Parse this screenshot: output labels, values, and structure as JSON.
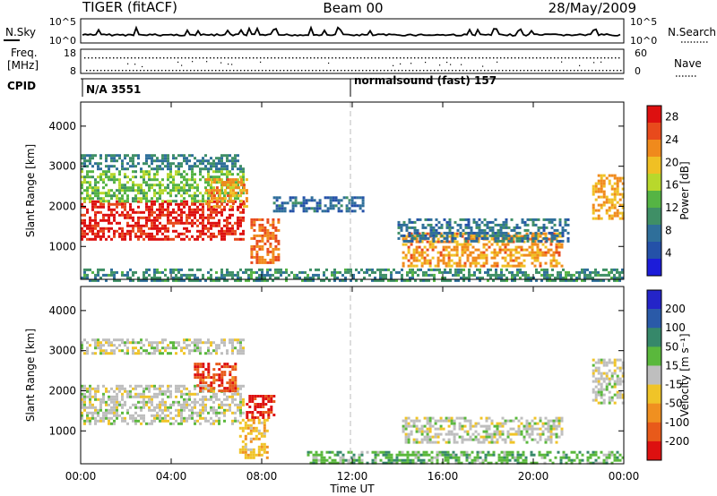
{
  "header": {
    "radar": "TIGER (fitACF)",
    "beam": "Beam 00",
    "date": "28/May/2009"
  },
  "strips": {
    "nsky_label": "N.Sky",
    "nsearch_label": "N.Search",
    "nsky_ticks": [
      "10^5",
      "10^0"
    ],
    "freq_label_1": "Freq.",
    "freq_label_2": "[MHz]",
    "freq_ticks": [
      "18",
      "8"
    ],
    "nave_label": "Nave",
    "nave_ticks": [
      "60",
      "0"
    ],
    "cpid_label": "CPID",
    "cpid_segments": [
      {
        "start_hour": 0,
        "text": "N/A 3551"
      },
      {
        "start_hour": 12,
        "text": "normalsound (fast) 157"
      }
    ]
  },
  "colors": {
    "power_scale": [
      "#1c1cd9",
      "#2451a8",
      "#2f6f9a",
      "#3f8f66",
      "#55b444",
      "#b8d82c",
      "#f0c024",
      "#f08a1c",
      "#e84a1c",
      "#dd1010"
    ],
    "velocity_scale": [
      "#2424c8",
      "#2a5aa8",
      "#36886a",
      "#5ab83c",
      "#bebebe",
      "#f0c428",
      "#f09020",
      "#e85a1a",
      "#dd1010"
    ]
  },
  "chart_data": [
    {
      "type": "heatmap",
      "panel": "power",
      "ylabel": "Slant Range [km]",
      "ylim": [
        180,
        4600
      ],
      "y_ticks": [
        "1000",
        "2000",
        "3000",
        "4000"
      ],
      "x_ticks": [
        "00:00",
        "04:00",
        "08:00",
        "12:00",
        "16:00",
        "20:00",
        "00:00"
      ],
      "xlim_hours": [
        0,
        24
      ],
      "colorbar": {
        "label": "Power [dB]",
        "ticks": [
          "4",
          "8",
          "12",
          "16",
          "20",
          "24",
          "28"
        ],
        "range": [
          0,
          30
        ]
      },
      "echo_regions": [
        {
          "t0": 0.0,
          "t1": 7.2,
          "r0": 1150,
          "r1": 2150,
          "value": 28
        },
        {
          "t0": 0.0,
          "t1": 7.2,
          "r0": 2150,
          "r1": 2900,
          "value": 14
        },
        {
          "t0": 0.0,
          "t1": 7.2,
          "r0": 2900,
          "r1": 3300,
          "value": 9
        },
        {
          "t0": 5.5,
          "t1": 7.3,
          "r0": 2000,
          "r1": 2700,
          "value": 22
        },
        {
          "t0": 7.5,
          "t1": 8.8,
          "r0": 600,
          "r1": 1700,
          "value": 24
        },
        {
          "t0": 8.5,
          "t1": 12.5,
          "r0": 1900,
          "r1": 2250,
          "value": 7
        },
        {
          "t0": 14.2,
          "t1": 21.3,
          "r0": 500,
          "r1": 1350,
          "value": 22
        },
        {
          "t0": 14.0,
          "t1": 21.5,
          "r0": 1100,
          "r1": 1700,
          "value": 8
        },
        {
          "t0": 22.6,
          "t1": 24.0,
          "r0": 1700,
          "r1": 2800,
          "value": 21
        },
        {
          "t0": 0.0,
          "t1": 24.0,
          "r0": 180,
          "r1": 450,
          "value": 10
        }
      ]
    },
    {
      "type": "heatmap",
      "panel": "velocity",
      "ylabel": "Slant Range [km]",
      "ylim": [
        180,
        4600
      ],
      "y_ticks": [
        "1000",
        "2000",
        "3000",
        "4000"
      ],
      "x_ticks": [
        "00:00",
        "04:00",
        "08:00",
        "12:00",
        "16:00",
        "20:00",
        "00:00"
      ],
      "xlim_hours": [
        0,
        24
      ],
      "xlabel": "Time UT",
      "colorbar": {
        "label": "Velocity [m s⁻¹]",
        "ticks": [
          "200",
          "100",
          "50",
          "15",
          "-15",
          "-50",
          "-100",
          "-200"
        ],
        "range": [
          -250,
          250
        ]
      },
      "echo_regions": [
        {
          "t0": 0.0,
          "t1": 7.2,
          "r0": 1150,
          "r1": 2150,
          "value": 0
        },
        {
          "t0": 0.0,
          "t1": 7.2,
          "r0": 2900,
          "r1": 3300,
          "value": 0
        },
        {
          "t0": 5.0,
          "t1": 6.8,
          "r0": 2000,
          "r1": 2700,
          "value": -180
        },
        {
          "t0": 7.3,
          "t1": 8.6,
          "r0": 1300,
          "r1": 1900,
          "value": -220
        },
        {
          "t0": 7.0,
          "t1": 8.2,
          "r0": 300,
          "r1": 1300,
          "value": -60
        },
        {
          "t0": 14.2,
          "t1": 21.3,
          "r0": 700,
          "r1": 1350,
          "value": 0
        },
        {
          "t0": 10.0,
          "t1": 24.0,
          "r0": 200,
          "r1": 500,
          "value": 60
        },
        {
          "t0": 22.6,
          "t1": 24.0,
          "r0": 1700,
          "r1": 2800,
          "value": 0
        }
      ]
    }
  ]
}
